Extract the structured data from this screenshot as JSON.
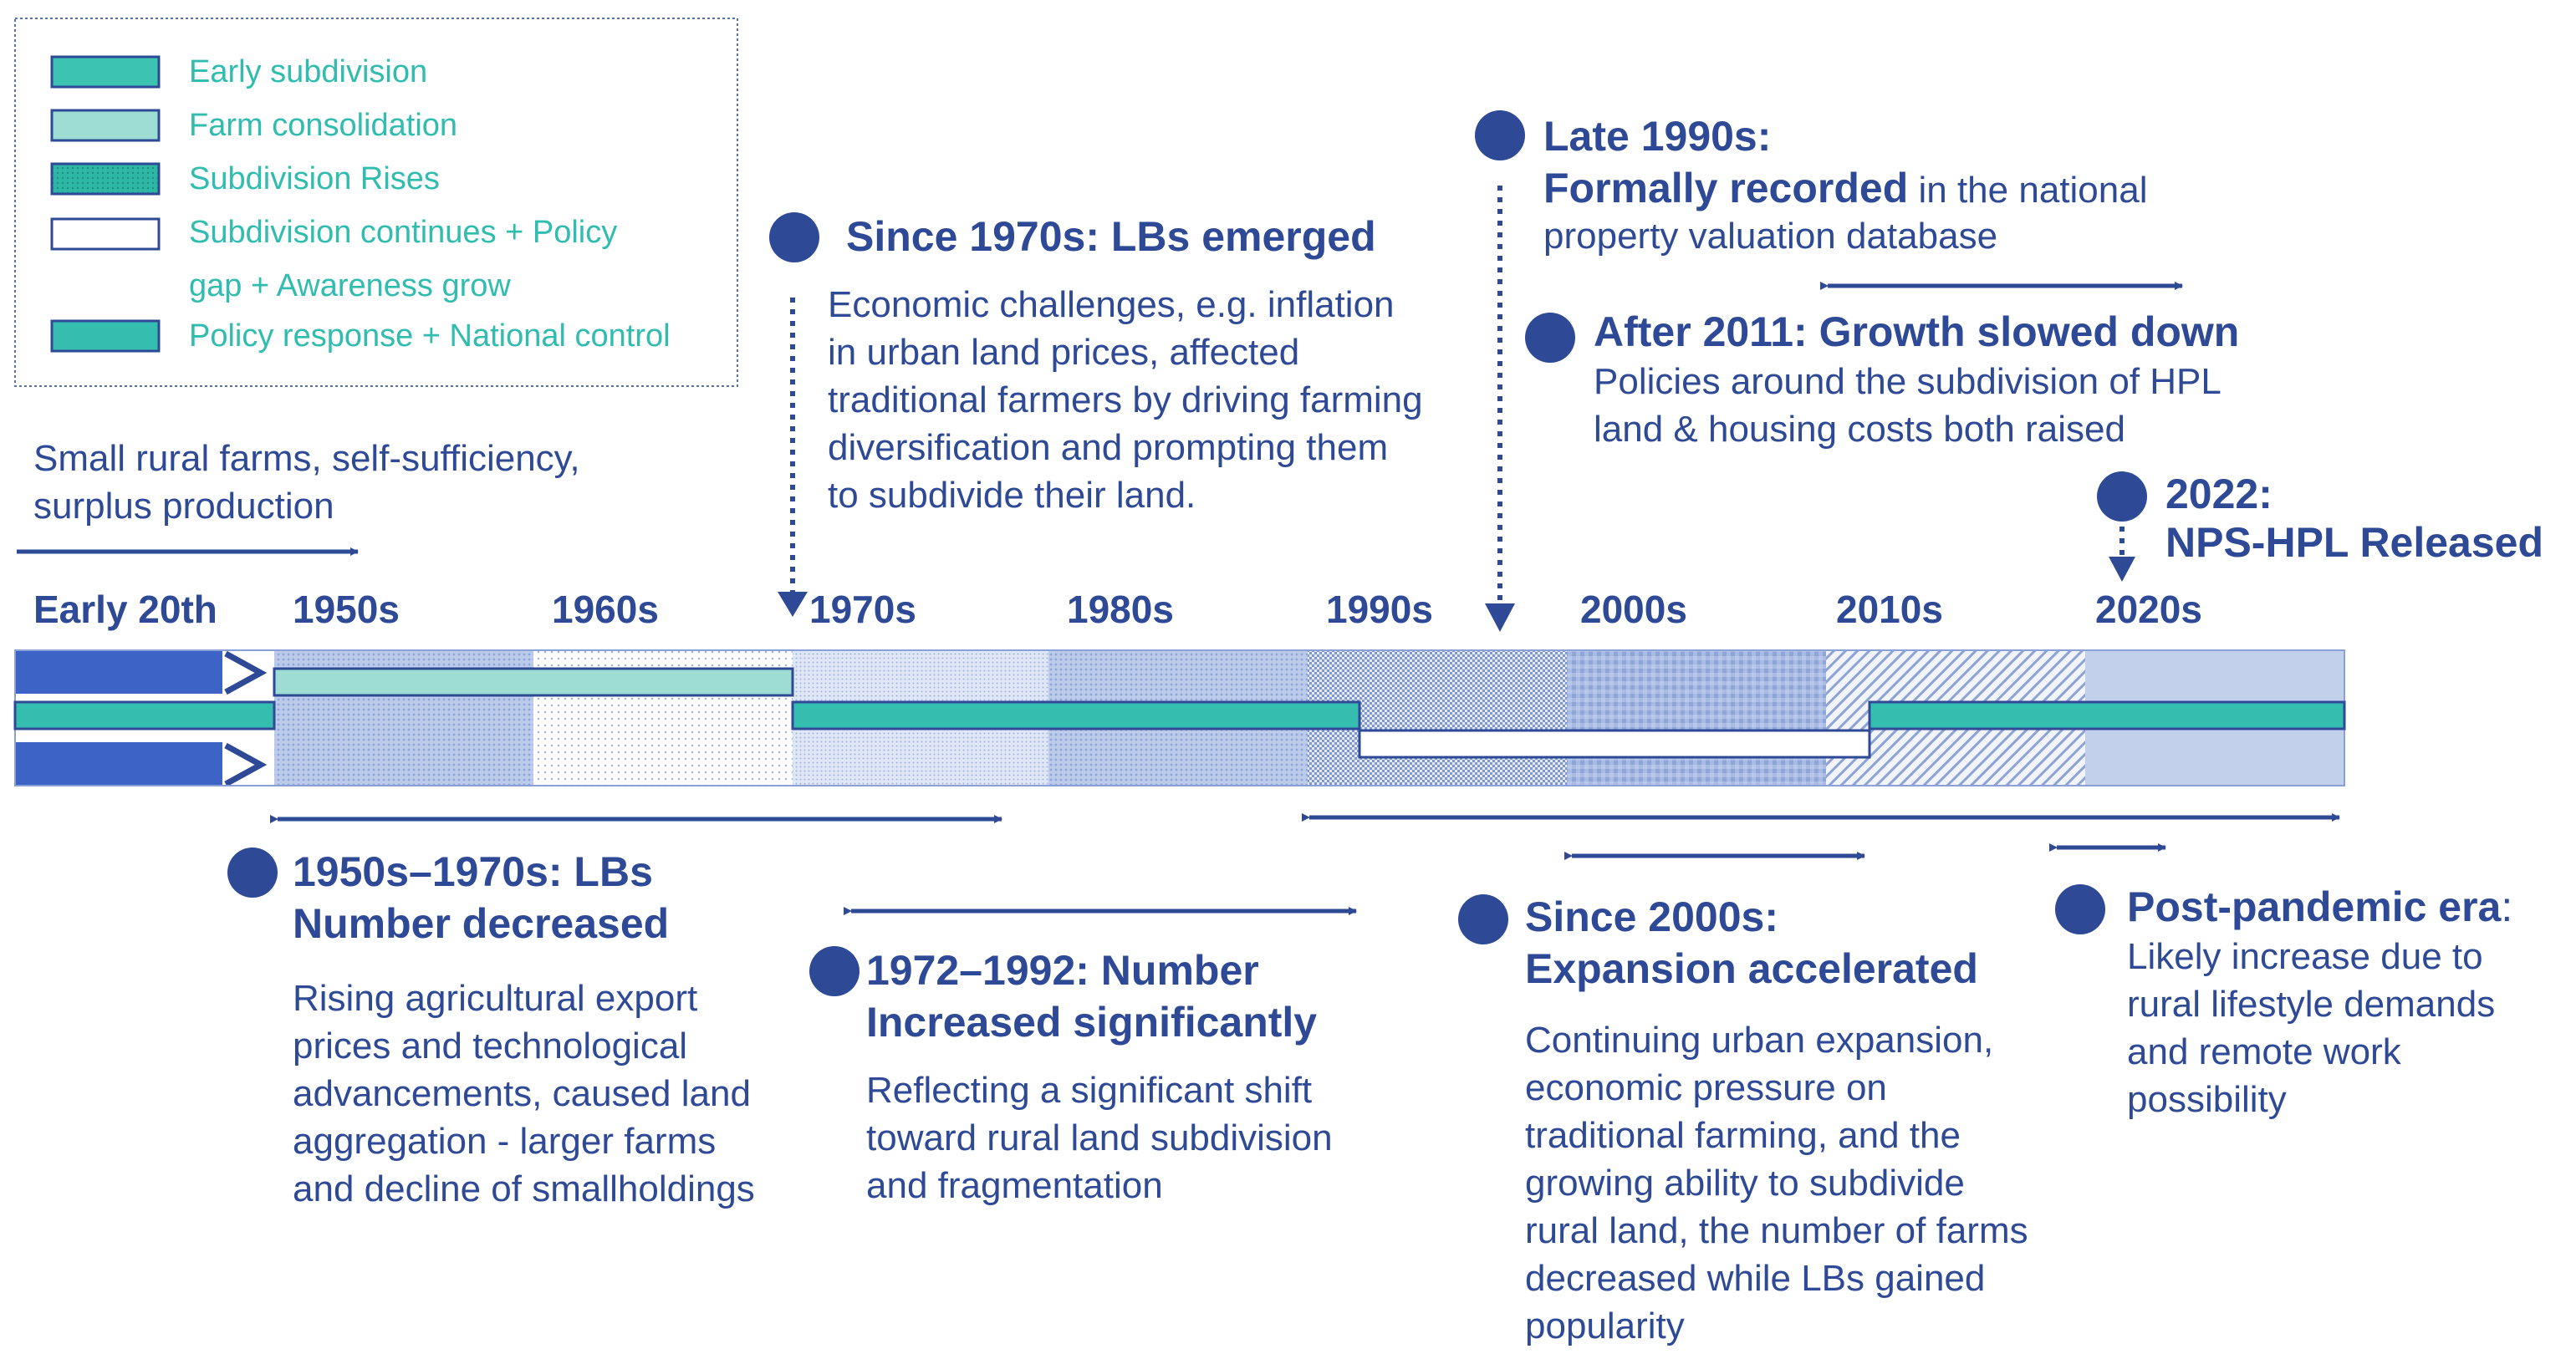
{
  "legend": {
    "items": [
      {
        "label": "Early subdivision",
        "color": "#3cc3b2",
        "style": "solid"
      },
      {
        "label": "Farm consolidation",
        "color": "#9dddd3",
        "style": "solid"
      },
      {
        "label": "Subdivision Rises",
        "color": "#2fb7a6",
        "style": "dotted"
      },
      {
        "label_line1": "Subdivision continues + Policy",
        "label_line2": "gap + Awareness grow",
        "color": "#ffffff",
        "style": "outline"
      },
      {
        "label": "Policy response + National control",
        "color": "#35beaf",
        "style": "solid"
      }
    ]
  },
  "intro": {
    "line1": "Small rural farms, self-sufficiency,",
    "line2": "surplus production"
  },
  "eras": [
    "Early 20th",
    "1950s",
    "1960s",
    "1970s",
    "1980s",
    "1990s",
    "2000s",
    "2010s",
    "2020s"
  ],
  "events_top": {
    "since1970": {
      "title": "Since 1970s: LBs emerged",
      "lines": [
        "Economic challenges, e.g. inflation",
        "in urban land prices, affected",
        "traditional farmers by driving farming",
        "diversification and prompting them",
        "to subdivide their land."
      ]
    },
    "late1990": {
      "title": "Late 1990s:",
      "bold_part": "Formally recorded",
      "rest_part": " in the national",
      "line3": "property valuation database"
    },
    "after2011": {
      "title": "After 2011: Growth slowed down",
      "lines": [
        "Policies around the subdivision of HPL",
        "land & housing costs both raised"
      ]
    },
    "y2022": {
      "title_line1": "2022:",
      "title_line2": "NPS-HPL Released"
    }
  },
  "events_bottom": {
    "e1950_1970": {
      "title_line1": "1950s–1970s: LBs",
      "title_line2": "Number decreased",
      "lines": [
        "Rising agricultural export",
        "prices and technological",
        "advancements, caused land",
        "aggregation - larger farms",
        "and decline of smallholdings"
      ]
    },
    "e1972_1992": {
      "title_line1": "1972–1992: Number",
      "title_line2": "Increased significantly",
      "lines": [
        "Reflecting a significant shift",
        "toward rural land subdivision",
        "and fragmentation"
      ]
    },
    "since2000": {
      "title_line1": "Since 2000s:",
      "title_line2": "Expansion accelerated",
      "lines": [
        "Continuing urban expansion,",
        "economic pressure on",
        "traditional farming, and the",
        "growing ability to subdivide",
        "rural land, the number of farms",
        "decreased while LBs gained",
        "popularity"
      ]
    },
    "postpandemic": {
      "title": "Post-pandemic era",
      "title_suffix": ":",
      "lines": [
        "Likely increase due to",
        "rural lifestyle demands",
        "and remote work",
        "possibility"
      ]
    }
  },
  "colors": {
    "navy": "#2e4996",
    "teal": "#35beaf",
    "teal_light": "#9dddd3",
    "bar_blue": "#3d63c7",
    "pale_blue": "#c9d4ec"
  }
}
